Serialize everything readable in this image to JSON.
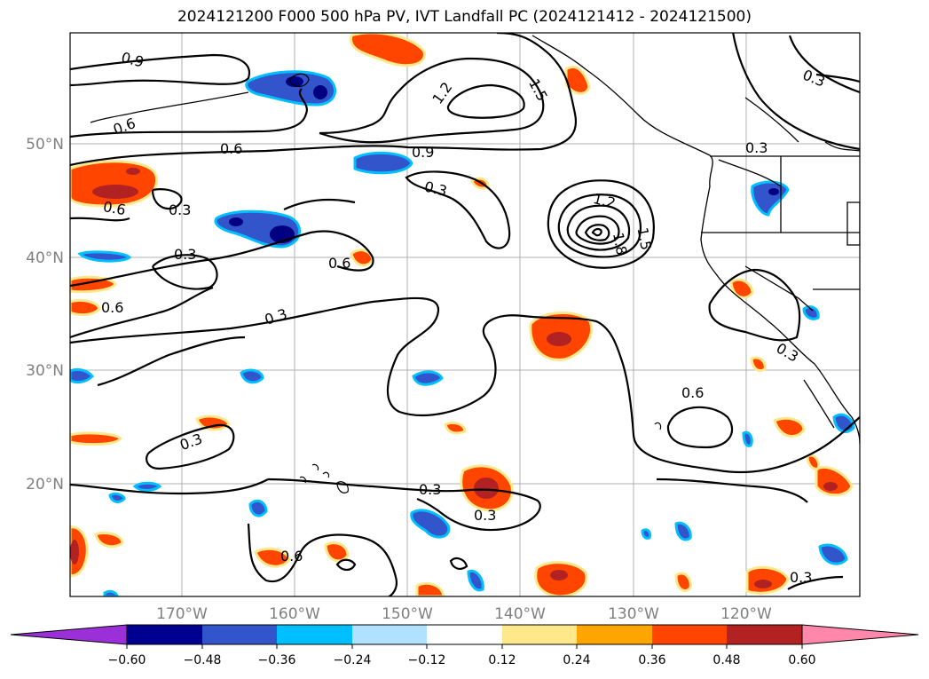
{
  "title": "2024121200 F000 500 hPa PV, IVT Landfall PC (2024121412 - 2024121500)",
  "map": {
    "lon_labels": [
      "170°W",
      "160°W",
      "150°W",
      "140°W",
      "130°W",
      "120°W"
    ],
    "lat_labels": [
      "50°N",
      "40°N",
      "30°N",
      "20°N"
    ],
    "contour_labels": [
      {
        "text": "0.9"
      },
      {
        "text": "0.6"
      },
      {
        "text": "0.6"
      },
      {
        "text": "0.9"
      },
      {
        "text": "0.3"
      },
      {
        "text": "1.2"
      },
      {
        "text": "1.5"
      },
      {
        "text": "0.3"
      },
      {
        "text": "0.6"
      },
      {
        "text": "0.3"
      },
      {
        "text": "0.3"
      },
      {
        "text": "0.6"
      },
      {
        "text": "1.2"
      },
      {
        "text": "1.5"
      },
      {
        "text": "1.8"
      },
      {
        "text": "0.3"
      },
      {
        "text": "0.6"
      },
      {
        "text": "0.3"
      },
      {
        "text": "0.3"
      },
      {
        "text": "0.6"
      },
      {
        "text": "0.3"
      },
      {
        "text": "0.3"
      },
      {
        "text": "0.3"
      },
      {
        "text": "0.3"
      },
      {
        "text": "0.3"
      },
      {
        "text": "0.6"
      }
    ],
    "colors": {
      "neg_strong": "#000080",
      "neg_mid": "#3355cc",
      "neg_light": "#00bfff",
      "pos_light": "#ffa500",
      "pos_mid": "#ff4500",
      "pos_strong": "#b22222",
      "pos_yellow": "#ffe88a"
    }
  },
  "colorbar": {
    "ticks": [
      "−0.60",
      "−0.48",
      "−0.36",
      "−0.24",
      "−0.12",
      "0.12",
      "0.24",
      "0.36",
      "0.48",
      "0.60"
    ],
    "colors": [
      "#9b30d9",
      "#000090",
      "#3355cc",
      "#00bfff",
      "#b0e2ff",
      "#ffffff",
      "#ffe88a",
      "#ffa500",
      "#ff4500",
      "#b22222",
      "#ff88aa"
    ]
  }
}
